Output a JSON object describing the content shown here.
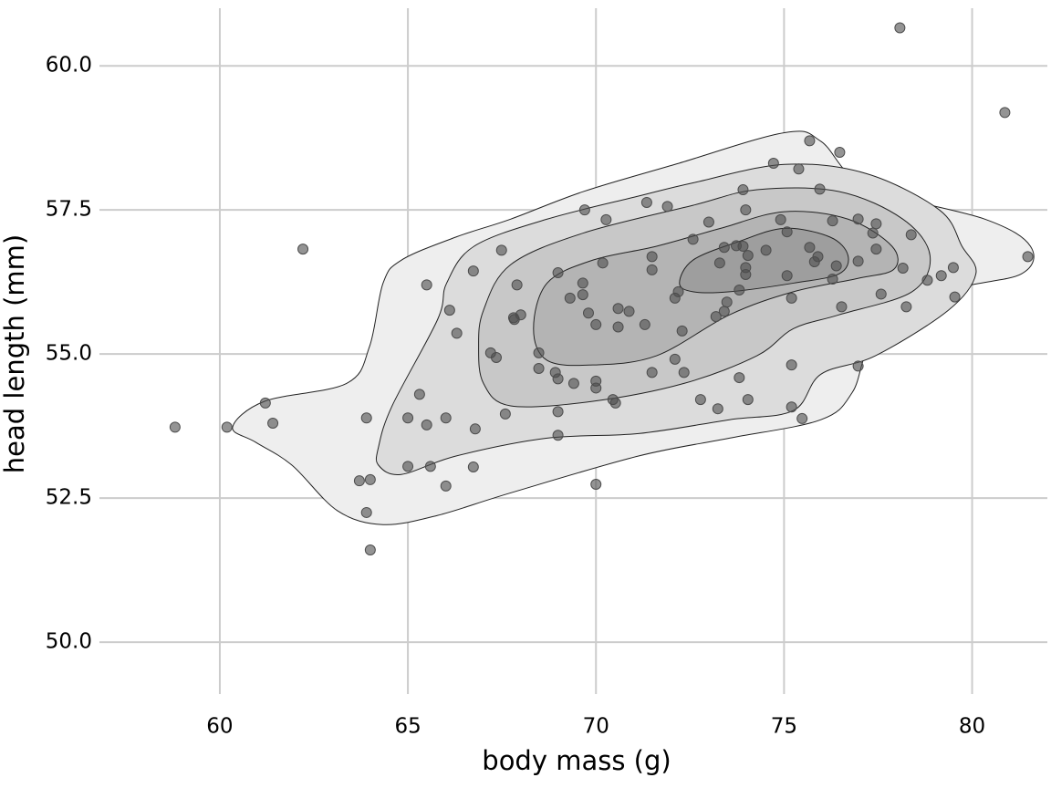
{
  "chart_data": {
    "type": "scatter",
    "x_label": "body mass (g)",
    "y_label": "head length (mm)",
    "xlim": [
      56.8,
      82.0
    ],
    "ylim": [
      49.1,
      61.0
    ],
    "xticks": [
      60,
      65,
      70,
      75,
      80
    ],
    "yticks": [
      {
        "value": 50,
        "label": "50.0"
      },
      {
        "value": 52.5,
        "label": "52.5"
      },
      {
        "value": 55,
        "label": "55.0"
      },
      {
        "value": 57.5,
        "label": "57.5"
      },
      {
        "value": 60,
        "label": "60.0"
      }
    ],
    "grid": true,
    "color": "#4d4d4d",
    "contour_line_color": "#222222",
    "contours": [
      {
        "fill": "#eeeeee",
        "x": [
          60.34,
          61.19,
          63.37,
          63.98,
          64.34,
          64.83,
          66.28,
          67.73,
          69.67,
          72.1,
          75.01,
          75.98,
          77.19,
          80.34,
          81.55,
          81.31,
          79.37,
          77.43,
          76.82,
          75.98,
          73.55,
          71.13,
          67.73,
          65.79,
          64.34,
          63.13,
          61.92,
          60.95
        ],
        "y": [
          53.73,
          54.18,
          54.49,
          55.13,
          56.23,
          56.63,
          57.03,
          57.34,
          57.82,
          58.29,
          58.84,
          58.69,
          57.9,
          57.34,
          56.87,
          56.39,
          56.08,
          55.28,
          54.34,
          53.86,
          53.54,
          53.23,
          52.59,
          52.2,
          52.04,
          52.28,
          53.07,
          53.47
        ]
      },
      {
        "fill": "#dcdcdc",
        "x": [
          64.22,
          64.58,
          65.79,
          66.03,
          66.76,
          68.7,
          71.13,
          72.58,
          75.01,
          77.19,
          79.13,
          79.73,
          80.1,
          79.37,
          77.43,
          75.98,
          75.25,
          73.55,
          71.13,
          68.7,
          66.28,
          64.82,
          64.22
        ],
        "y": [
          53.39,
          54.1,
          55.6,
          56.23,
          56.87,
          57.34,
          57.74,
          57.97,
          58.29,
          58.13,
          57.5,
          56.87,
          56.39,
          55.76,
          54.97,
          54.65,
          54.02,
          53.86,
          53.62,
          53.54,
          53.23,
          52.91,
          53.07
        ]
      },
      {
        "fill": "#c8c8c8",
        "x": [
          67.01,
          67.73,
          69.67,
          72.58,
          74.28,
          76.46,
          78.16,
          78.88,
          78.4,
          76.46,
          75.25,
          74.28,
          72.34,
          69.92,
          67.73,
          67.01,
          66.88
        ],
        "y": [
          55.76,
          56.55,
          57.1,
          57.58,
          57.85,
          57.82,
          57.34,
          56.71,
          56.08,
          55.68,
          55.44,
          54.97,
          54.49,
          54.18,
          54.1,
          54.49,
          55.13
        ]
      },
      {
        "fill": "#b4b4b4",
        "x": [
          68.34,
          68.7,
          69.92,
          71.61,
          73.31,
          75.01,
          76.7,
          77.87,
          77.92,
          76.95,
          75.25,
          73.55,
          71.61,
          69.92,
          68.7
        ],
        "y": [
          55.44,
          56.23,
          56.63,
          56.87,
          57.18,
          57.47,
          57.34,
          56.87,
          56.47,
          56.31,
          56.08,
          55.68,
          54.97,
          54.81,
          54.89
        ]
      },
      {
        "fill": "#9e9e9e",
        "x": [
          72.22,
          72.58,
          73.79,
          75.01,
          76.22,
          76.7,
          76.46,
          75.25,
          73.55,
          72.58
        ],
        "y": [
          56.23,
          56.63,
          56.95,
          57.18,
          57.03,
          56.71,
          56.39,
          56.23,
          56.08,
          56.08
        ]
      }
    ],
    "x": [
      58.81,
      60.19,
      61.21,
      61.41,
      62.21,
      63.9,
      63.71,
      64.0,
      63.9,
      64.0,
      65.0,
      65.0,
      65.31,
      65.5,
      65.6,
      65.5,
      66.01,
      66.01,
      66.11,
      66.3,
      66.74,
      66.79,
      66.74,
      67.49,
      67.2,
      67.35,
      67.59,
      67.81,
      68.0,
      67.9,
      67.83,
      68.48,
      68.48,
      68.99,
      68.92,
      68.99,
      68.99,
      68.99,
      69.31,
      69.41,
      69.7,
      69.65,
      69.65,
      69.8,
      70.0,
      70.0,
      70.0,
      70.0,
      70.27,
      70.18,
      70.45,
      70.52,
      70.59,
      70.59,
      70.88,
      71.3,
      71.35,
      71.49,
      71.49,
      71.49,
      71.9,
      72.1,
      72.19,
      72.1,
      72.29,
      72.34,
      72.58,
      72.78,
      73.0,
      73.24,
      73.19,
      73.29,
      73.41,
      73.48,
      73.41,
      73.73,
      73.81,
      73.81,
      73.91,
      73.91,
      73.98,
      73.98,
      73.98,
      74.04,
      74.04,
      74.52,
      74.72,
      74.91,
      75.08,
      75.08,
      75.2,
      75.2,
      75.2,
      75.39,
      75.48,
      75.68,
      75.68,
      75.81,
      75.9,
      75.95,
      76.48,
      76.29,
      76.29,
      76.39,
      76.53,
      76.97,
      76.97,
      76.97,
      77.36,
      77.45,
      77.45,
      77.58,
      78.08,
      78.16,
      78.25,
      78.38,
      78.81,
      79.18,
      79.5,
      79.54,
      80.87,
      81.48
    ],
    "values": [
      53.73,
      53.73,
      54.15,
      53.8,
      56.82,
      53.89,
      52.8,
      52.82,
      52.25,
      51.6,
      53.89,
      53.05,
      54.3,
      53.77,
      53.05,
      56.2,
      53.89,
      52.71,
      55.76,
      55.36,
      56.44,
      53.7,
      53.04,
      56.8,
      55.02,
      54.94,
      53.96,
      55.63,
      55.68,
      56.2,
      55.6,
      55.02,
      54.75,
      56.41,
      54.68,
      54.57,
      54.0,
      53.59,
      55.97,
      54.49,
      57.5,
      56.23,
      56.03,
      55.71,
      55.51,
      54.53,
      54.41,
      52.74,
      57.33,
      56.58,
      54.21,
      54.15,
      55.79,
      55.47,
      55.74,
      55.51,
      57.63,
      56.69,
      56.46,
      54.68,
      57.56,
      55.97,
      56.08,
      54.91,
      55.4,
      54.68,
      56.99,
      54.21,
      57.29,
      54.05,
      55.65,
      56.58,
      55.74,
      55.9,
      56.85,
      56.88,
      56.11,
      54.59,
      57.85,
      56.87,
      57.5,
      56.5,
      56.38,
      56.71,
      54.21,
      56.8,
      58.31,
      57.33,
      57.12,
      56.36,
      55.97,
      54.81,
      54.08,
      58.21,
      53.88,
      58.7,
      56.85,
      56.6,
      56.69,
      57.86,
      58.5,
      56.3,
      57.31,
      56.53,
      55.82,
      57.34,
      56.61,
      54.79,
      57.1,
      57.26,
      56.82,
      56.04,
      60.66,
      56.49,
      55.82,
      57.07,
      56.28,
      56.36,
      56.5,
      55.99,
      59.19,
      56.69
    ]
  }
}
